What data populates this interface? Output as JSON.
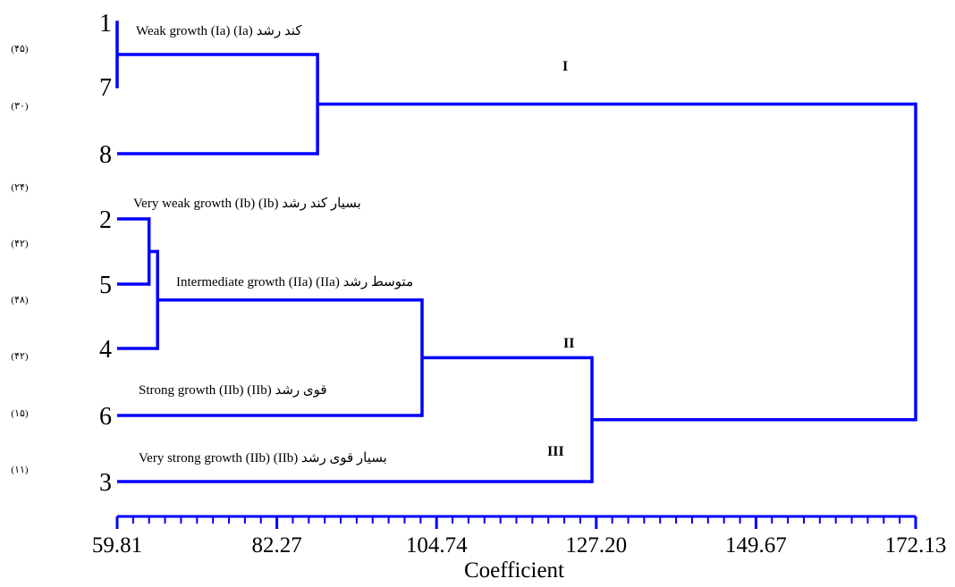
{
  "chart_data": {
    "type": "dendrogram",
    "orientation": "horizontal",
    "xlabel": "Coefficient",
    "x_ticks": [
      59.81,
      82.27,
      104.74,
      127.2,
      149.67,
      172.13
    ],
    "x_tick_labels": [
      "59.81",
      "82.27",
      "104.74",
      "127.20",
      "149.67",
      "172.13"
    ],
    "xlim": [
      59.81,
      172.13
    ],
    "leaf_order": [
      "1",
      "7",
      "8",
      "2",
      "5",
      "4",
      "6",
      "3"
    ],
    "leaf_counts": [
      "(۴۵)",
      "(۳۰)",
      "(۲۴)",
      "(۴۲)",
      "(۴۸)",
      "(۴۲)",
      "(۱۵)",
      "(۱۱)"
    ],
    "merges": [
      {
        "left": "1",
        "right": "7",
        "height": 59.81
      },
      {
        "left": "1-7",
        "right": "8",
        "height": 88.0
      },
      {
        "left": "2",
        "right": "5",
        "height": 64.3
      },
      {
        "left": "2-5",
        "right": "4",
        "height": 65.5
      },
      {
        "left": "2-5-4",
        "right": "6",
        "height": 102.7
      },
      {
        "left": "2-5-4-6",
        "right": "3",
        "height": 126.6
      },
      {
        "left": "1-7-8",
        "right": "2-5-4-6-3",
        "height": 172.13
      }
    ],
    "cluster_labels": [
      "Weak growth (Ia)   (Ia) کند رشد",
      "Very weak growth (Ib)   (Ib) بسیار کند رشد",
      "Intermediate growth (IIa)   (IIa) متوسط رشد",
      "Strong growth (IIb)   (IIb) قوی رشد",
      "Very strong growth (IIb)   (IIb) بسیار قوی رشد"
    ],
    "group_labels": [
      "I",
      "II",
      "III"
    ],
    "line_color": "#0000ff"
  }
}
